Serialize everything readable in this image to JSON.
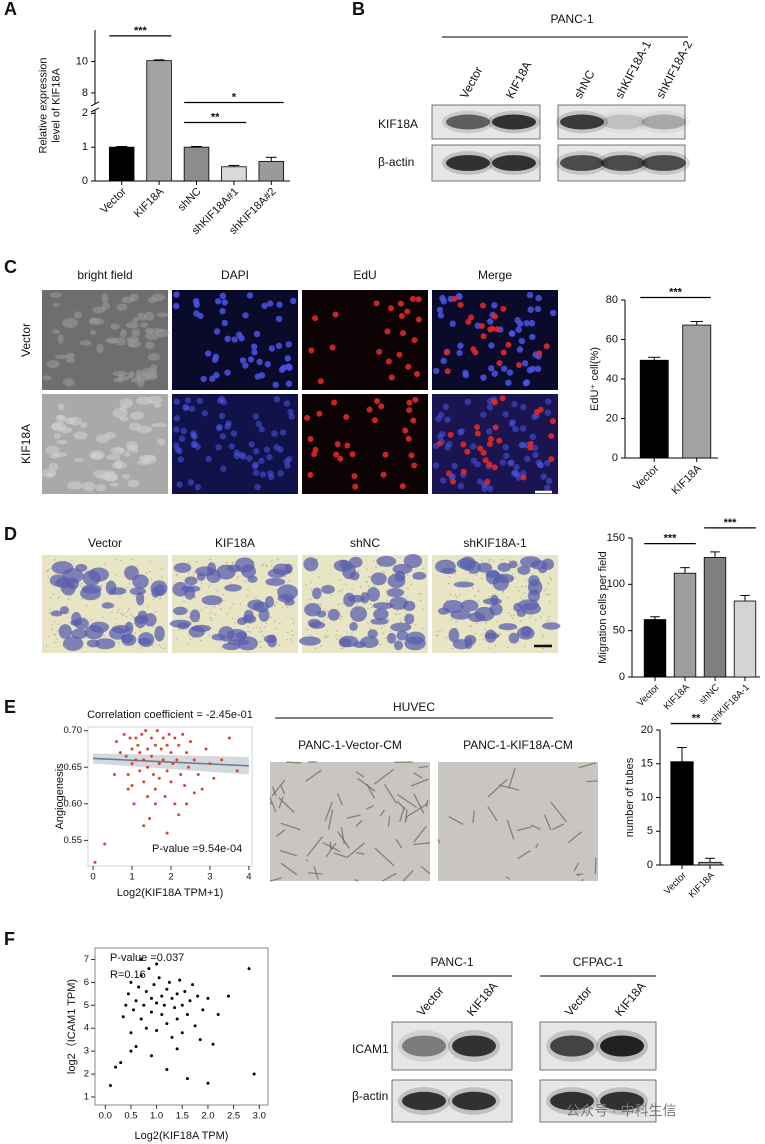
{
  "panel_labels": [
    "A",
    "B",
    "C",
    "D",
    "E",
    "F"
  ],
  "chart_data": [
    {
      "type": "bar",
      "ylabel": [
        "Relative expression",
        "level of KIF18A"
      ],
      "categories": [
        "Vector",
        "KIF18A",
        "shNC",
        "shKIF18A#1",
        "shKIF18A#2"
      ],
      "values": [
        1.0,
        10.05,
        1.0,
        0.42,
        0.58
      ],
      "errors": [
        0.02,
        0.05,
        0.02,
        0.04,
        0.12
      ],
      "colors": [
        "#000000",
        "#a3a3a3",
        "#8c8c8c",
        "#d9d9d9",
        "#9a9a9a"
      ],
      "ylim": [
        0,
        12
      ],
      "ybreak": [
        2.1,
        7.3
      ],
      "yticks": [
        0,
        1,
        2,
        8,
        10
      ],
      "significance": [
        {
          "label": "***",
          "from": "Vector",
          "to": "KIF18A"
        },
        {
          "label": "**",
          "from": "shNC",
          "to": "shKIF18A#1"
        },
        {
          "label": "*",
          "from": "shNC",
          "to": "shKIF18A#2"
        }
      ]
    },
    {
      "type": "bar",
      "ylabel": [
        "EdU⁺ cell(%)"
      ],
      "categories": [
        "Vector",
        "KIF18A"
      ],
      "values": [
        49.5,
        67.3
      ],
      "errors": [
        1.5,
        1.8
      ],
      "colors": [
        "#000000",
        "#a3a3a3"
      ],
      "ylim": [
        0,
        80
      ],
      "yticks": [
        0,
        20,
        40,
        60,
        80
      ],
      "significance": [
        {
          "label": "***",
          "from": "Vector",
          "to": "KIF18A"
        }
      ]
    },
    {
      "type": "bar",
      "ylabel": [
        "Migration cells per field"
      ],
      "categories": [
        "Vector",
        "KIF18A",
        "shNC",
        "shKIF18A-1"
      ],
      "values": [
        62,
        112,
        129,
        82
      ],
      "errors": [
        3,
        6,
        6,
        6
      ],
      "colors": [
        "#000000",
        "#9e9e9e",
        "#7f7f7f",
        "#d4d4d4"
      ],
      "ylim": [
        0,
        150
      ],
      "yticks": [
        0,
        50,
        100,
        150
      ],
      "significance": [
        {
          "label": "***",
          "from": "Vector",
          "to": "KIF18A"
        },
        {
          "label": "***",
          "from": "shNC",
          "to": "shKIF18A-1"
        }
      ]
    },
    {
      "type": "scatter",
      "title": "Correlation coefficient = -2.45e-01",
      "annotations": [
        "P-value =9.54e-04"
      ],
      "xlabel": "Log2(KIF18A TPM+1)",
      "ylabel": "Angiogenesis",
      "color": "#d9452f",
      "x": [
        0.05,
        0.3,
        0.55,
        0.6,
        0.7,
        0.8,
        0.85,
        0.9,
        0.95,
        1.0,
        1.0,
        1.05,
        1.1,
        1.1,
        1.15,
        1.2,
        1.2,
        1.25,
        1.3,
        1.3,
        1.35,
        1.4,
        1.4,
        1.45,
        1.5,
        1.5,
        1.55,
        1.6,
        1.6,
        1.65,
        1.7,
        1.7,
        1.75,
        1.8,
        1.8,
        1.85,
        1.9,
        1.9,
        1.95,
        2.0,
        2.0,
        2.05,
        2.1,
        2.1,
        2.15,
        2.2,
        2.25,
        2.3,
        2.35,
        2.4,
        2.45,
        2.5,
        2.6,
        2.7,
        2.8,
        2.9,
        3.0,
        3.1,
        3.3,
        3.5,
        3.7,
        1.0,
        1.3,
        1.6,
        2.2,
        2.6,
        1.4,
        0.9,
        1.9,
        2.4
      ],
      "y": [
        0.52,
        0.545,
        0.64,
        0.685,
        0.67,
        0.695,
        0.665,
        0.64,
        0.69,
        0.675,
        0.655,
        0.6,
        0.69,
        0.66,
        0.68,
        0.645,
        0.67,
        0.695,
        0.66,
        0.63,
        0.7,
        0.675,
        0.65,
        0.58,
        0.69,
        0.665,
        0.64,
        0.68,
        0.62,
        0.7,
        0.655,
        0.635,
        0.675,
        0.69,
        0.66,
        0.61,
        0.68,
        0.645,
        0.695,
        0.67,
        0.63,
        0.655,
        0.69,
        0.6,
        0.66,
        0.68,
        0.64,
        0.695,
        0.625,
        0.67,
        0.65,
        0.685,
        0.66,
        0.64,
        0.62,
        0.675,
        0.655,
        0.635,
        0.66,
        0.69,
        0.645,
        0.625,
        0.57,
        0.6,
        0.585,
        0.615,
        0.61,
        0.62,
        0.56,
        0.6
      ],
      "fit": {
        "x": [
          0,
          4
        ],
        "y": [
          0.662,
          0.652
        ],
        "lower": [
          0.655,
          0.64
        ],
        "upper": [
          0.669,
          0.664
        ]
      },
      "xlim": [
        -0.13,
        4.08
      ],
      "ylim": [
        0.515,
        0.705
      ],
      "xticks": [
        0,
        1,
        2,
        3,
        4
      ],
      "yticks": [
        {
          "value": 0.55,
          "label": "0.55"
        },
        {
          "value": 0.6,
          "label": "0.60"
        },
        {
          "value": 0.65,
          "label": "0.65"
        },
        {
          "value": 0.7,
          "label": "0.70"
        }
      ]
    },
    {
      "type": "bar",
      "ylabel": [
        "number of tubes"
      ],
      "categories": [
        "Vector",
        "KIF18A"
      ],
      "values": [
        15.3,
        0.4
      ],
      "errors": [
        2.1,
        0.6
      ],
      "colors": [
        "#000000",
        "#a3a3a3"
      ],
      "ylim": [
        0,
        20
      ],
      "yticks": [
        0,
        5,
        10,
        15,
        20
      ],
      "significance": [
        {
          "label": "**",
          "from": "Vector",
          "to": "KIF18A"
        }
      ]
    },
    {
      "type": "scatter",
      "annotations": [
        "P-value =0.037",
        "R=0.16"
      ],
      "xlabel": "Log2(KIF18A TPM)",
      "ylabel": "log2（ICAM1 TPM)",
      "color": "#000000",
      "x": [
        0.1,
        0.3,
        0.35,
        0.4,
        0.45,
        0.5,
        0.5,
        0.55,
        0.6,
        0.6,
        0.65,
        0.7,
        0.7,
        0.75,
        0.8,
        0.8,
        0.85,
        0.9,
        0.9,
        0.95,
        1.0,
        1.0,
        1.05,
        1.1,
        1.1,
        1.15,
        1.2,
        1.2,
        1.25,
        1.3,
        1.3,
        1.35,
        1.4,
        1.4,
        1.45,
        1.5,
        1.5,
        1.55,
        1.6,
        1.65,
        1.7,
        1.75,
        1.8,
        1.85,
        1.9,
        2.0,
        2.1,
        2.2,
        2.4,
        2.8,
        2.9,
        0.2,
        0.5,
        0.9,
        1.2,
        1.6,
        2.0,
        0.7,
        1.0,
        1.4
      ],
      "y": [
        1.5,
        2.5,
        4.5,
        5.0,
        5.5,
        3.8,
        6.0,
        4.8,
        5.2,
        3.2,
        5.8,
        4.4,
        6.3,
        5.0,
        5.6,
        4.0,
        6.6,
        5.3,
        4.7,
        5.9,
        5.1,
        3.9,
        6.2,
        5.4,
        4.6,
        5.0,
        5.7,
        4.2,
        6.0,
        5.3,
        3.6,
        4.9,
        5.5,
        4.4,
        6.1,
        5.0,
        3.8,
        5.6,
        4.6,
        5.2,
        5.9,
        4.1,
        5.4,
        3.5,
        4.8,
        5.3,
        3.3,
        4.6,
        5.4,
        6.6,
        2.0,
        2.3,
        3.0,
        2.8,
        2.2,
        1.8,
        1.6,
        7.0,
        6.8,
        3.1
      ],
      "xlim": [
        -0.2,
        3.17
      ],
      "ylim": [
        0.65,
        7.5
      ],
      "xticks": [
        {
          "value": 0,
          "label": "0.0"
        },
        0.5,
        {
          "value": 1,
          "label": "1.0"
        },
        1.5,
        {
          "value": 2,
          "label": "2.0"
        },
        2.5,
        {
          "value": 3,
          "label": "3.0"
        }
      ],
      "yticks": [
        1,
        2,
        3,
        4,
        5,
        6,
        7
      ]
    }
  ],
  "blot_b": {
    "title": "PANC-1",
    "lanes": [
      "Vector",
      "KIF18A",
      "shNC",
      "shKIF18A-1",
      "shKIF18A-2"
    ],
    "rows": [
      "KIF18A",
      "β-actin"
    ]
  },
  "panel_c": {
    "columns": [
      "bright field",
      "DAPI",
      "EdU",
      "Merge"
    ],
    "rows": [
      "Vector",
      "KIF18A"
    ]
  },
  "panel_d": {
    "columns": [
      "Vector",
      "KIF18A",
      "shNC",
      "shKIF18A-1"
    ]
  },
  "panel_e": {
    "title": "HUVEC",
    "images": [
      "PANC-1-Vector-CM",
      "PANC-1-KIF18A-CM"
    ]
  },
  "blot_f": {
    "groups": [
      {
        "title": "PANC-1",
        "lanes": [
          "Vector",
          "KIF18A"
        ]
      },
      {
        "title": "CFPAC-1",
        "lanes": [
          "Vector",
          "KIF18A"
        ]
      }
    ],
    "rows": [
      "ICAM1",
      "β-actin"
    ]
  },
  "watermark": "公众号 · 中科生信"
}
